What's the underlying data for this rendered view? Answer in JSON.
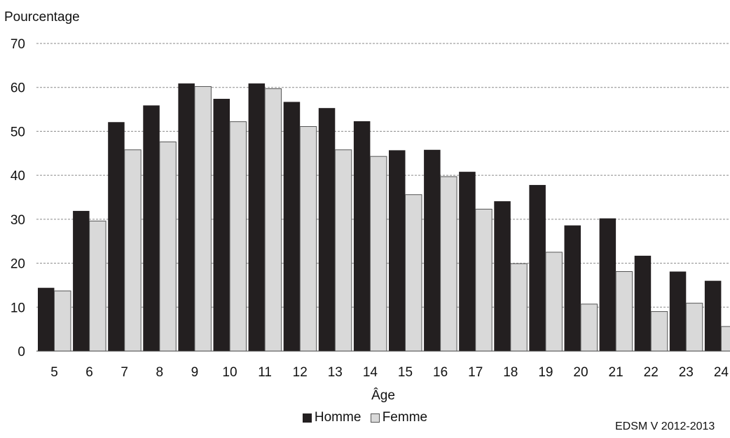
{
  "chart_data": {
    "type": "bar",
    "title": "",
    "ylabel": "Pourcentage",
    "xlabel": "Âge",
    "source": "EDSM V 2012-2013",
    "ylim": [
      0,
      70
    ],
    "yticks": [
      0,
      10,
      20,
      30,
      40,
      50,
      60,
      70
    ],
    "grid": true,
    "legend_position": "bottom",
    "categories": [
      "5",
      "6",
      "7",
      "8",
      "9",
      "10",
      "11",
      "12",
      "13",
      "14",
      "15",
      "16",
      "17",
      "18",
      "19",
      "20",
      "21",
      "22",
      "23",
      "24"
    ],
    "series": [
      {
        "name": "Homme",
        "color": "#231f20",
        "values": [
          14.4,
          31.9,
          52.1,
          55.9,
          60.9,
          57.4,
          60.9,
          56.7,
          55.3,
          52.3,
          45.7,
          45.8,
          40.8,
          34.1,
          37.8,
          28.6,
          30.2,
          21.7,
          18.1,
          16.0
        ]
      },
      {
        "name": "Femme",
        "color": "#d9d9d9",
        "values": [
          13.7,
          29.6,
          45.8,
          47.6,
          60.2,
          52.2,
          59.7,
          51.1,
          45.8,
          44.3,
          35.6,
          39.7,
          32.3,
          19.9,
          22.5,
          10.7,
          18.1,
          9.0,
          10.9,
          5.6
        ]
      }
    ]
  }
}
